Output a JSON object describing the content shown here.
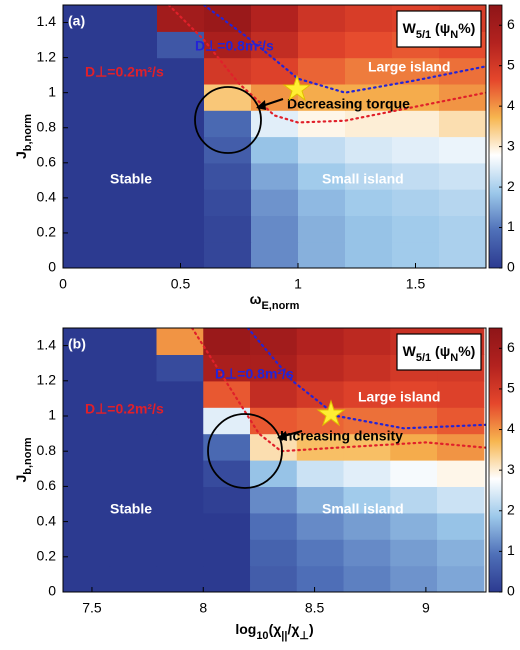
{
  "chart_data": [
    {
      "type": "heatmap",
      "panel_label": "(a)",
      "xlabel": [
        {
          "t": "ω"
        },
        {
          "t": "E,norm",
          "sub": true
        }
      ],
      "ylabel": [
        {
          "t": "J"
        },
        {
          "t": "b,norm",
          "sub": true
        }
      ],
      "xlim": [
        0,
        1.8
      ],
      "ylim": [
        0,
        1.5
      ],
      "xticks": [
        0,
        0.5,
        1,
        1.5
      ],
      "yticks": [
        0,
        0.2,
        0.4,
        0.6,
        0.8,
        1,
        1.2,
        1.4
      ],
      "clim": [
        0,
        6.5
      ],
      "cticks": [
        0,
        1,
        2,
        3,
        4,
        5,
        6
      ],
      "colorbar_label": [
        {
          "t": "W"
        },
        {
          "t": "5/1",
          "sub": true
        },
        {
          "t": " (ψ"
        },
        {
          "t": "N",
          "sub": true
        },
        {
          "t": "%)"
        }
      ],
      "colorscale": [
        "#2c3a90",
        "#4f70b8",
        "#9cc8ea",
        "#ffffff",
        "#f7b64f",
        "#e5472c",
        "#b3221f",
        "#8e1518"
      ],
      "x": [
        0.1,
        0.3,
        0.5,
        0.7,
        0.9,
        1.1,
        1.3,
        1.5,
        1.7
      ],
      "y": [
        0.075,
        0.225,
        0.375,
        0.525,
        0.675,
        0.825,
        0.975,
        1.125,
        1.275,
        1.425
      ],
      "z": [
        [
          0,
          0,
          0,
          0.2,
          1.2,
          1.6,
          1.8,
          1.9,
          2.0
        ],
        [
          0,
          0,
          0,
          0.2,
          1.2,
          1.6,
          1.8,
          1.9,
          2.0
        ],
        [
          0,
          0,
          0,
          0.3,
          1.3,
          1.7,
          1.9,
          2.0,
          2.1
        ],
        [
          0,
          0,
          0,
          0.4,
          1.5,
          1.9,
          2.1,
          2.2,
          2.3
        ],
        [
          0,
          0,
          0,
          0.6,
          1.8,
          2.2,
          2.4,
          2.5,
          2.6
        ],
        [
          0,
          0,
          0,
          0.8,
          2.5,
          2.9,
          3.0,
          3.0,
          3.2
        ],
        [
          0,
          0,
          0,
          3.5,
          4.0,
          3.8,
          3.8,
          3.8,
          4.0
        ],
        [
          0,
          0,
          0,
          5.0,
          4.8,
          4.4,
          4.2,
          4.2,
          4.3
        ],
        [
          0,
          0,
          0.5,
          5.8,
          5.3,
          4.8,
          4.6,
          4.5,
          4.6
        ],
        [
          0,
          0,
          6.0,
          6.2,
          5.6,
          5.1,
          4.9,
          4.8,
          4.9
        ]
      ],
      "series": [
        {
          "name": "D⊥=0.8m²/s",
          "color": "#2424d6",
          "x": [
            0.6,
            0.8,
            1.0,
            1.2,
            1.5,
            1.8
          ],
          "values": [
            1.5,
            1.3,
            1.08,
            1.0,
            1.07,
            1.15
          ]
        },
        {
          "name": "D⊥=0.2m²/s",
          "color": "#e0202a",
          "x": [
            0.45,
            0.6,
            0.75,
            0.9,
            1.0,
            1.2,
            1.5,
            1.8
          ],
          "values": [
            1.5,
            1.3,
            1.05,
            0.87,
            0.83,
            0.84,
            0.92,
            1.0
          ]
        }
      ],
      "annotations": [
        {
          "text": "Large island",
          "color": "#ffffff"
        },
        {
          "text": "Decreasing torque",
          "color": "#000000"
        },
        {
          "text": "Stable",
          "color": "#ffffff"
        },
        {
          "text": "Small island",
          "color": "#ffffff"
        }
      ]
    },
    {
      "type": "heatmap",
      "panel_label": "(b)",
      "xlabel": [
        {
          "t": "log"
        },
        {
          "t": "10",
          "sub": true
        },
        {
          "t": "(χ"
        },
        {
          "t": "||",
          "sub": true
        },
        {
          "t": "/χ"
        },
        {
          "t": "⊥",
          "sub": true
        },
        {
          "t": ")"
        }
      ],
      "ylabel": [
        {
          "t": "J"
        },
        {
          "t": "b,norm",
          "sub": true
        }
      ],
      "xlim": [
        7.37,
        9.27
      ],
      "ylim": [
        0,
        1.5
      ],
      "xticks": [
        7.5,
        8,
        8.5,
        9
      ],
      "yticks": [
        0,
        0.2,
        0.4,
        0.6,
        0.8,
        1,
        1.2,
        1.4
      ],
      "clim": [
        0,
        6.5
      ],
      "cticks": [
        0,
        1,
        2,
        3,
        4,
        5,
        6
      ],
      "colorbar_label": [
        {
          "t": "W"
        },
        {
          "t": "5/1",
          "sub": true
        },
        {
          "t": " (ψ"
        },
        {
          "t": "N",
          "sub": true
        },
        {
          "t": "%)"
        }
      ],
      "colorscale": [
        "#2c3a90",
        "#4f70b8",
        "#9cc8ea",
        "#ffffff",
        "#f7b64f",
        "#e5472c",
        "#b3221f",
        "#8e1518"
      ],
      "x": [
        7.475,
        7.685,
        7.895,
        8.105,
        8.315,
        8.525,
        8.735,
        8.945,
        9.155
      ],
      "y": [
        0.075,
        0.225,
        0.375,
        0.525,
        0.675,
        0.825,
        0.975,
        1.125,
        1.275,
        1.425
      ],
      "z": [
        [
          0,
          0,
          0,
          0,
          0.6,
          0.9,
          1.1,
          1.3,
          1.5
        ],
        [
          0,
          0,
          0,
          0,
          0.7,
          1.0,
          1.2,
          1.4,
          1.6
        ],
        [
          0,
          0,
          0,
          0,
          0.9,
          1.2,
          1.4,
          1.6,
          1.8
        ],
        [
          0,
          0,
          0,
          0.1,
          1.2,
          1.6,
          1.9,
          2.1,
          2.3
        ],
        [
          0,
          0,
          0,
          0.3,
          1.8,
          2.3,
          2.5,
          2.7,
          2.9
        ],
        [
          0,
          0,
          0,
          0.8,
          3.2,
          3.6,
          3.6,
          3.8,
          4.0
        ],
        [
          0,
          0,
          0,
          2.5,
          4.5,
          4.4,
          4.3,
          4.3,
          4.5
        ],
        [
          0,
          0,
          0,
          4.5,
          5.3,
          5.0,
          4.8,
          4.7,
          4.8
        ],
        [
          0,
          0,
          0.3,
          5.8,
          5.8,
          5.4,
          5.2,
          5.0,
          5.0
        ],
        [
          0,
          0,
          4.0,
          6.2,
          6.0,
          5.6,
          5.4,
          5.2,
          5.2
        ]
      ],
      "series": [
        {
          "name": "D⊥=0.8m²/s",
          "color": "#2424d6",
          "x": [
            8.2,
            8.4,
            8.6,
            8.9,
            9.27
          ],
          "values": [
            1.5,
            1.2,
            1.0,
            0.93,
            0.95
          ]
        },
        {
          "name": "D⊥=0.2m²/s",
          "color": "#e0202a",
          "x": [
            7.95,
            8.1,
            8.25,
            8.35,
            8.6,
            9.0,
            9.27
          ],
          "values": [
            1.5,
            1.2,
            0.9,
            0.8,
            0.82,
            0.85,
            0.82
          ]
        }
      ],
      "annotations": [
        {
          "text": "Large island",
          "color": "#ffffff"
        },
        {
          "text": "Increasing density",
          "color": "#000000"
        },
        {
          "text": "Stable",
          "color": "#ffffff"
        },
        {
          "text": "Small island",
          "color": "#ffffff"
        }
      ]
    }
  ]
}
